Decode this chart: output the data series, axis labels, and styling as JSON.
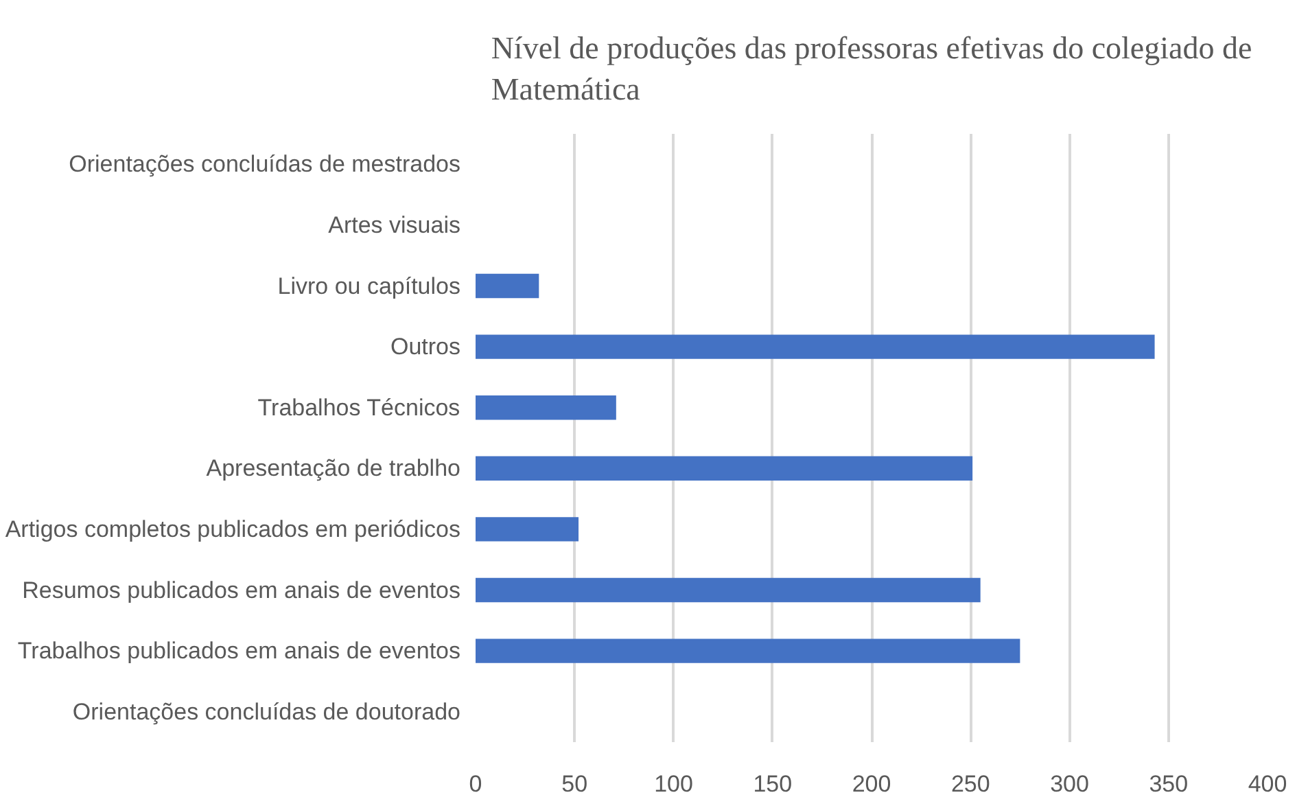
{
  "chart_data": {
    "type": "bar",
    "orientation": "horizontal",
    "title": "Nível de produções das professoras efetivas do colegiado de\nMatemática",
    "categories": [
      "Orientações concluídas de mestrados",
      "Artes visuais",
      "Livro ou capítulos",
      "Outros",
      "Trabalhos Técnicos",
      "Apresentação de trablho",
      "Artigos completos publicados em periódicos",
      "Resumos publicados em anais de eventos",
      "Trabalhos publicados em anais de eventos",
      "Orientações concluídas de doutorado"
    ],
    "values": [
      0,
      0,
      32,
      343,
      71,
      251,
      52,
      255,
      275,
      0
    ],
    "color": "#4472c4",
    "xlim": [
      0,
      400
    ],
    "xticks": [
      0,
      50,
      100,
      150,
      200,
      250,
      300,
      350,
      400
    ],
    "grid": "x"
  }
}
